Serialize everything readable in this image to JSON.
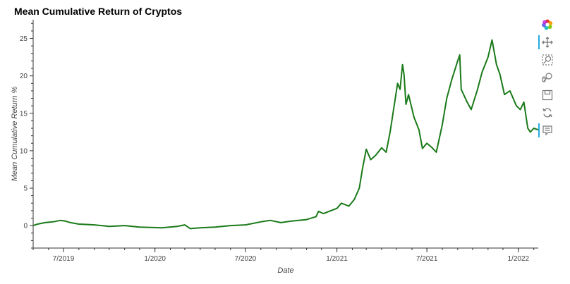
{
  "chart_data": {
    "type": "line",
    "title": "Mean Cumulative Return of Cryptos",
    "xlabel": "Date",
    "ylabel": "Mean Cumulative Return %",
    "x_range": [
      "2019-05-01",
      "2022-02-10"
    ],
    "ylim": [
      -3,
      27.5
    ],
    "x_ticks": [
      {
        "date": "2019-07-01",
        "label": "7/2019"
      },
      {
        "date": "2020-01-01",
        "label": "1/2020"
      },
      {
        "date": "2020-07-01",
        "label": "7/2020"
      },
      {
        "date": "2021-01-01",
        "label": "1/2021"
      },
      {
        "date": "2021-07-01",
        "label": "7/2021"
      },
      {
        "date": "2022-01-01",
        "label": "1/2022"
      }
    ],
    "y_ticks": [
      0,
      5,
      10,
      15,
      20,
      25
    ],
    "grid": false,
    "series": [
      {
        "color": "#1a7a1a",
        "points": [
          [
            "2019-05-01",
            0.0
          ],
          [
            "2019-05-10",
            0.2
          ],
          [
            "2019-05-25",
            0.4
          ],
          [
            "2019-06-10",
            0.5
          ],
          [
            "2019-06-25",
            0.7
          ],
          [
            "2019-07-05",
            0.6
          ],
          [
            "2019-07-15",
            0.4
          ],
          [
            "2019-08-01",
            0.2
          ],
          [
            "2019-09-01",
            0.1
          ],
          [
            "2019-10-01",
            -0.1
          ],
          [
            "2019-11-01",
            0.0
          ],
          [
            "2019-12-01",
            -0.2
          ],
          [
            "2020-01-15",
            -0.3
          ],
          [
            "2020-02-15",
            -0.1
          ],
          [
            "2020-03-01",
            0.1
          ],
          [
            "2020-03-12",
            -0.4
          ],
          [
            "2020-04-01",
            -0.3
          ],
          [
            "2020-05-01",
            -0.2
          ],
          [
            "2020-06-01",
            0.0
          ],
          [
            "2020-07-01",
            0.1
          ],
          [
            "2020-08-01",
            0.5
          ],
          [
            "2020-08-20",
            0.7
          ],
          [
            "2020-09-10",
            0.4
          ],
          [
            "2020-10-01",
            0.6
          ],
          [
            "2020-11-01",
            0.8
          ],
          [
            "2020-11-20",
            1.2
          ],
          [
            "2020-11-25",
            1.9
          ],
          [
            "2020-12-05",
            1.6
          ],
          [
            "2020-12-20",
            2.0
          ],
          [
            "2021-01-01",
            2.3
          ],
          [
            "2021-01-10",
            3.0
          ],
          [
            "2021-01-25",
            2.6
          ],
          [
            "2021-02-05",
            3.5
          ],
          [
            "2021-02-15",
            5.0
          ],
          [
            "2021-02-22",
            7.8
          ],
          [
            "2021-03-01",
            10.2
          ],
          [
            "2021-03-10",
            8.8
          ],
          [
            "2021-03-20",
            9.4
          ],
          [
            "2021-04-01",
            10.4
          ],
          [
            "2021-04-10",
            9.8
          ],
          [
            "2021-04-18",
            12.5
          ],
          [
            "2021-04-25",
            15.5
          ],
          [
            "2021-05-03",
            19.0
          ],
          [
            "2021-05-08",
            18.2
          ],
          [
            "2021-05-13",
            21.5
          ],
          [
            "2021-05-16",
            20.2
          ],
          [
            "2021-05-20",
            16.2
          ],
          [
            "2021-05-25",
            17.5
          ],
          [
            "2021-06-05",
            14.5
          ],
          [
            "2021-06-15",
            12.8
          ],
          [
            "2021-06-22",
            10.3
          ],
          [
            "2021-07-01",
            11.0
          ],
          [
            "2021-07-10",
            10.5
          ],
          [
            "2021-07-20",
            9.8
          ],
          [
            "2021-08-01",
            13.5
          ],
          [
            "2021-08-10",
            17.0
          ],
          [
            "2021-08-20",
            19.5
          ],
          [
            "2021-09-01",
            22.0
          ],
          [
            "2021-09-05",
            22.8
          ],
          [
            "2021-09-08",
            18.2
          ],
          [
            "2021-09-20",
            16.5
          ],
          [
            "2021-09-28",
            15.5
          ],
          [
            "2021-10-10",
            18.0
          ],
          [
            "2021-10-20",
            20.5
          ],
          [
            "2021-11-01",
            22.5
          ],
          [
            "2021-11-09",
            24.8
          ],
          [
            "2021-11-18",
            21.5
          ],
          [
            "2021-11-25",
            20.2
          ],
          [
            "2021-12-04",
            17.5
          ],
          [
            "2021-12-15",
            18.0
          ],
          [
            "2021-12-28",
            16.0
          ],
          [
            "2022-01-05",
            15.5
          ],
          [
            "2022-01-12",
            16.5
          ],
          [
            "2022-01-20",
            13.0
          ],
          [
            "2022-01-25",
            12.5
          ],
          [
            "2022-02-01",
            13.0
          ],
          [
            "2022-02-10",
            12.8
          ]
        ]
      }
    ]
  },
  "toolbar": [
    {
      "name": "bokeh-logo-icon",
      "icon": "logo",
      "active": false
    },
    {
      "name": "pan-icon",
      "icon": "pan",
      "active": true
    },
    {
      "name": "box-zoom-icon",
      "icon": "box-zoom",
      "active": false
    },
    {
      "name": "wheel-zoom-icon",
      "icon": "wheel-zoom",
      "active": false
    },
    {
      "name": "save-icon",
      "icon": "save",
      "active": false
    },
    {
      "name": "reset-icon",
      "icon": "reset",
      "active": false
    },
    {
      "name": "hover-icon",
      "icon": "hover",
      "active": true
    }
  ]
}
